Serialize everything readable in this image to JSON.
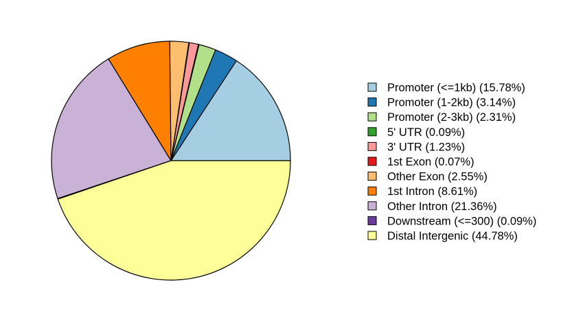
{
  "chart_data": {
    "type": "pie",
    "title": "",
    "start_angle_deg": 0,
    "direction": "counterclockwise",
    "slices": [
      {
        "label": "Promoter (<=1kb) (15.78%)",
        "value": 15.78,
        "color": "#A6CEE3"
      },
      {
        "label": "Promoter (1-2kb) (3.14%)",
        "value": 3.14,
        "color": "#1F78B4"
      },
      {
        "label": "Promoter (2-3kb) (2.31%)",
        "value": 2.31,
        "color": "#B2DF8A"
      },
      {
        "label": "5' UTR (0.09%)",
        "value": 0.09,
        "color": "#33A02C"
      },
      {
        "label": "3' UTR (1.23%)",
        "value": 1.23,
        "color": "#FB9A99"
      },
      {
        "label": "1st Exon (0.07%)",
        "value": 0.07,
        "color": "#E31A1C"
      },
      {
        "label": "Other Exon (2.55%)",
        "value": 2.55,
        "color": "#FDBF6F"
      },
      {
        "label": "1st Intron (8.61%)",
        "value": 8.61,
        "color": "#FF7F00"
      },
      {
        "label": "Other Intron (21.36%)",
        "value": 21.36,
        "color": "#CAB2D6"
      },
      {
        "label": "Downstream (<=300) (0.09%)",
        "value": 0.09,
        "color": "#6A3D9A"
      },
      {
        "label": "Distal Intergenic (44.78%)",
        "value": 44.78,
        "color": "#FFFF99"
      }
    ],
    "legend_position": "right"
  }
}
